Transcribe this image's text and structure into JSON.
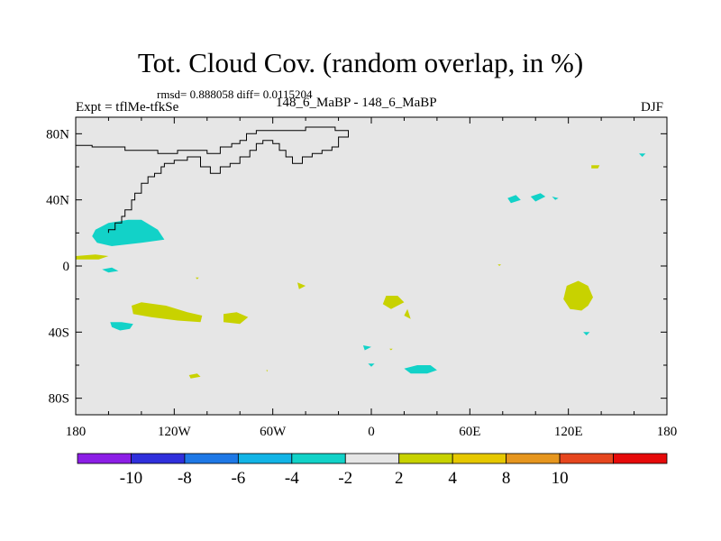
{
  "chart_data": {
    "type": "heatmap",
    "title": "Tot. Cloud Cov. (random overlap, in %)",
    "stats": "rmsd= 0.888058  diff= 0.0115204",
    "left_label": "Expt = tflMe-tfkSe",
    "center_label": "148_6_MaBP - 148_6_MaBP",
    "right_label": "DJF",
    "xlim": [
      -180,
      180
    ],
    "ylim": [
      -90,
      90
    ],
    "x_ticks": [
      {
        "value": -180,
        "label": "180"
      },
      {
        "value": -120,
        "label": "120W"
      },
      {
        "value": -60,
        "label": "60W"
      },
      {
        "value": 0,
        "label": "0"
      },
      {
        "value": 60,
        "label": "60E"
      },
      {
        "value": 120,
        "label": "120E"
      },
      {
        "value": 180,
        "label": "180"
      }
    ],
    "y_ticks": [
      {
        "value": 80,
        "label": "80N"
      },
      {
        "value": 40,
        "label": "40N"
      },
      {
        "value": 0,
        "label": "0"
      },
      {
        "value": -40,
        "label": "40S"
      },
      {
        "value": -80,
        "label": "80S"
      }
    ],
    "colorbar": {
      "colors": [
        "#8c1ee6",
        "#3030dc",
        "#1e78e6",
        "#12b4e6",
        "#12d2c8",
        "#e6e6e6",
        "#c8d200",
        "#e6c800",
        "#e6961e",
        "#e6461e",
        "#e60a0a"
      ],
      "labels": [
        "-10",
        "-8",
        "-6",
        "-4",
        "-2",
        "2",
        "4",
        "8",
        "10"
      ]
    },
    "background_color": "#e6e6e6",
    "regions": [
      {
        "color": "#12d2c8",
        "points": [
          [
            -168,
            22
          ],
          [
            -160,
            26
          ],
          [
            -148,
            28
          ],
          [
            -140,
            28
          ],
          [
            -130,
            22
          ],
          [
            -126,
            16
          ],
          [
            -140,
            14
          ],
          [
            -158,
            12
          ],
          [
            -167,
            14
          ],
          [
            -170,
            18
          ]
        ]
      },
      {
        "color": "#c8d200",
        "points": [
          [
            -180,
            6
          ],
          [
            -168,
            7
          ],
          [
            -160,
            6
          ],
          [
            -166,
            4
          ],
          [
            -180,
            4
          ]
        ]
      },
      {
        "color": "#12d2c8",
        "points": [
          [
            -164,
            -2
          ],
          [
            -158,
            -1
          ],
          [
            -154,
            -3
          ],
          [
            -160,
            -4
          ]
        ]
      },
      {
        "color": "#c8d200",
        "points": [
          [
            -146,
            -24
          ],
          [
            -140,
            -22
          ],
          [
            -125,
            -24
          ],
          [
            -112,
            -28
          ],
          [
            -103,
            -30
          ],
          [
            -104,
            -34
          ],
          [
            -118,
            -33
          ],
          [
            -134,
            -31
          ],
          [
            -145,
            -29
          ]
        ]
      },
      {
        "color": "#c8d200",
        "points": [
          [
            -90,
            -29
          ],
          [
            -82,
            -28
          ],
          [
            -75,
            -31
          ],
          [
            -80,
            -35
          ],
          [
            -90,
            -34
          ]
        ]
      },
      {
        "color": "#12d2c8",
        "points": [
          [
            -159,
            -34
          ],
          [
            -152,
            -34
          ],
          [
            -145,
            -35
          ],
          [
            -147,
            -38
          ],
          [
            -153,
            -39
          ],
          [
            -158,
            -37
          ]
        ]
      },
      {
        "color": "#c8d200",
        "points": [
          [
            -111,
            -66
          ],
          [
            -106,
            -65
          ],
          [
            -104,
            -67
          ],
          [
            -110,
            -68
          ]
        ]
      },
      {
        "color": "#c8d200",
        "points": [
          [
            -45,
            -10
          ],
          [
            -40,
            -12
          ],
          [
            -44,
            -14
          ]
        ]
      },
      {
        "color": "#c8d200",
        "points": [
          [
            9,
            -18
          ],
          [
            16,
            -18
          ],
          [
            20,
            -22
          ],
          [
            12,
            -26
          ],
          [
            7,
            -23
          ]
        ]
      },
      {
        "color": "#c8d200",
        "points": [
          [
            22,
            -26
          ],
          [
            24,
            -32
          ],
          [
            20,
            -30
          ]
        ]
      },
      {
        "color": "#c8d200",
        "points": [
          [
            119,
            -12
          ],
          [
            126,
            -9
          ],
          [
            132,
            -12
          ],
          [
            135,
            -19
          ],
          [
            132,
            -24
          ],
          [
            128,
            -27
          ],
          [
            121,
            -26
          ],
          [
            117,
            -20
          ]
        ]
      },
      {
        "color": "#12d2c8",
        "points": [
          [
            97,
            42
          ],
          [
            103,
            44
          ],
          [
            106,
            42
          ],
          [
            100,
            39
          ]
        ]
      },
      {
        "color": "#12d2c8",
        "points": [
          [
            83,
            41
          ],
          [
            88,
            43
          ],
          [
            91,
            40
          ],
          [
            85,
            38
          ]
        ]
      },
      {
        "color": "#12d2c8",
        "points": [
          [
            110,
            42
          ],
          [
            114,
            41
          ],
          [
            112,
            40
          ]
        ]
      },
      {
        "color": "#12d2c8",
        "points": [
          [
            -5,
            -48
          ],
          [
            0,
            -49
          ],
          [
            -4,
            -51
          ]
        ]
      },
      {
        "color": "#12d2c8",
        "points": [
          [
            20,
            -62
          ],
          [
            28,
            -60
          ],
          [
            36,
            -60
          ],
          [
            40,
            -63
          ],
          [
            34,
            -65
          ],
          [
            24,
            -65
          ]
        ]
      },
      {
        "color": "#12d2c8",
        "points": [
          [
            -2,
            -59
          ],
          [
            2,
            -59
          ],
          [
            0,
            -61
          ]
        ]
      },
      {
        "color": "#12d2c8",
        "points": [
          [
            129,
            -40
          ],
          [
            133,
            -40
          ],
          [
            131,
            -42
          ]
        ]
      },
      {
        "color": "#c8d200",
        "points": [
          [
            134,
            61
          ],
          [
            139,
            61
          ],
          [
            138,
            59
          ],
          [
            134,
            59
          ]
        ]
      },
      {
        "color": "#12d2c8",
        "points": [
          [
            163,
            68
          ],
          [
            167,
            68
          ],
          [
            165,
            66
          ]
        ]
      },
      {
        "color": "#c8d200",
        "points": [
          [
            -64,
            -63
          ],
          [
            -63,
            -63
          ],
          [
            -63.5,
            -64
          ]
        ]
      },
      {
        "color": "#c8d200",
        "points": [
          [
            11,
            -50
          ],
          [
            13,
            -50
          ],
          [
            12,
            -51
          ]
        ]
      },
      {
        "color": "#c8d200",
        "points": [
          [
            -107,
            -7
          ],
          [
            -105,
            -7
          ],
          [
            -106,
            -8
          ]
        ]
      },
      {
        "color": "#c8d200",
        "points": [
          [
            77,
            1
          ],
          [
            79,
            1
          ],
          [
            78,
            0
          ]
        ]
      }
    ],
    "coastlines": [
      [
        [
          -180,
          73
        ],
        [
          -170,
          73
        ],
        [
          -170,
          72
        ],
        [
          -150,
          72
        ],
        [
          -150,
          70
        ],
        [
          -130,
          70
        ],
        [
          -130,
          68
        ],
        [
          -118,
          68
        ],
        [
          -118,
          70
        ],
        [
          -100,
          70
        ],
        [
          -100,
          68
        ],
        [
          -92,
          68
        ],
        [
          -92,
          72
        ],
        [
          -85,
          72
        ],
        [
          -85,
          74
        ],
        [
          -80,
          74
        ],
        [
          -80,
          76
        ],
        [
          -76,
          76
        ],
        [
          -76,
          80
        ],
        [
          -70,
          80
        ],
        [
          -70,
          82
        ],
        [
          -40,
          82
        ],
        [
          -40,
          84
        ],
        [
          -22,
          84
        ],
        [
          -22,
          82
        ],
        [
          -14,
          82
        ],
        [
          -14,
          78
        ],
        [
          -20,
          78
        ],
        [
          -20,
          72
        ],
        [
          -24,
          72
        ],
        [
          -24,
          70
        ],
        [
          -30,
          70
        ],
        [
          -30,
          68
        ],
        [
          -36,
          68
        ],
        [
          -36,
          66
        ],
        [
          -42,
          66
        ],
        [
          -42,
          62
        ],
        [
          -48,
          62
        ],
        [
          -48,
          66
        ],
        [
          -52,
          66
        ],
        [
          -52,
          70
        ],
        [
          -56,
          70
        ],
        [
          -56,
          74
        ],
        [
          -60,
          74
        ],
        [
          -60,
          76
        ],
        [
          -66,
          76
        ],
        [
          -66,
          74
        ],
        [
          -70,
          74
        ],
        [
          -70,
          70
        ],
        [
          -74,
          70
        ],
        [
          -74,
          66
        ],
        [
          -80,
          66
        ],
        [
          -80,
          62
        ],
        [
          -86,
          62
        ],
        [
          -86,
          60
        ],
        [
          -92,
          60
        ],
        [
          -92,
          56
        ],
        [
          -98,
          56
        ],
        [
          -98,
          60
        ],
        [
          -104,
          60
        ],
        [
          -104,
          66
        ],
        [
          -112,
          66
        ],
        [
          -112,
          64
        ],
        [
          -120,
          64
        ],
        [
          -120,
          62
        ],
        [
          -126,
          62
        ],
        [
          -126,
          60
        ],
        [
          -128,
          60
        ],
        [
          -128,
          56
        ],
        [
          -132,
          56
        ],
        [
          -132,
          54
        ],
        [
          -136,
          54
        ],
        [
          -136,
          50
        ],
        [
          -140,
          50
        ],
        [
          -140,
          44
        ],
        [
          -144,
          44
        ],
        [
          -144,
          40
        ],
        [
          -146,
          40
        ],
        [
          -146,
          34
        ],
        [
          -150,
          34
        ],
        [
          -150,
          30
        ],
        [
          -152,
          30
        ],
        [
          -152,
          26
        ],
        [
          -156,
          26
        ],
        [
          -156,
          22
        ],
        [
          -160,
          22
        ],
        [
          -160,
          20
        ]
      ]
    ]
  }
}
